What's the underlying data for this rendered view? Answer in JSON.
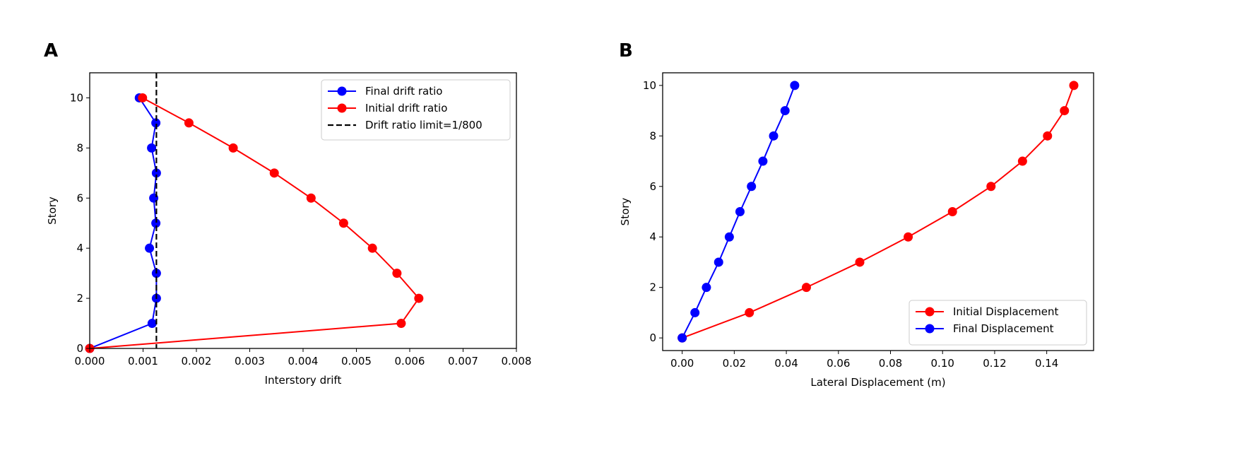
{
  "panel_labels": [
    "A",
    "B"
  ],
  "chart_data": [
    {
      "type": "line",
      "panel": "A",
      "xlabel": "Interstory drift",
      "ylabel": "Story",
      "xlim": [
        0,
        0.008
      ],
      "ylim": [
        0,
        11
      ],
      "xticks": [
        0,
        0.001,
        0.002,
        0.003,
        0.004,
        0.005,
        0.006,
        0.007,
        0.008
      ],
      "xtick_labels": [
        "0.000",
        "0.001",
        "0.002",
        "0.003",
        "0.004",
        "0.005",
        "0.006",
        "0.007",
        "0.008"
      ],
      "yticks": [
        0,
        2,
        4,
        6,
        8,
        10
      ],
      "ytick_labels": [
        "0",
        "2",
        "4",
        "6",
        "8",
        "10"
      ],
      "grid": false,
      "legend_position": "top-right",
      "series": [
        {
          "name": "Final drift ratio",
          "color": "#0000ff",
          "marker": "circle",
          "x": [
            0,
            0.00117,
            0.00125,
            0.00125,
            0.00112,
            0.00124,
            0.0012,
            0.00125,
            0.00116,
            0.00124,
            0.00093
          ],
          "y": [
            0,
            1,
            2,
            3,
            4,
            5,
            6,
            7,
            8,
            9,
            10
          ]
        },
        {
          "name": "Initial drift ratio",
          "color": "#ff0000",
          "marker": "circle",
          "x": [
            0,
            0.00584,
            0.00617,
            0.00576,
            0.0053,
            0.00476,
            0.00415,
            0.00346,
            0.00269,
            0.00186,
            0.00099
          ],
          "y": [
            0,
            1,
            2,
            3,
            4,
            5,
            6,
            7,
            8,
            9,
            10
          ]
        },
        {
          "name": "Drift ratio limit=1/800",
          "color": "#000000",
          "style": "dashed",
          "vline": 0.00125
        }
      ]
    },
    {
      "type": "line",
      "panel": "B",
      "xlabel": "Lateral Displacement (m)",
      "ylabel": "Story",
      "xlim": [
        -0.0075,
        0.158
      ],
      "ylim": [
        -0.5,
        10.5
      ],
      "xticks": [
        0,
        0.02,
        0.04,
        0.06,
        0.08,
        0.1,
        0.12,
        0.14
      ],
      "xtick_labels": [
        "0.00",
        "0.02",
        "0.04",
        "0.06",
        "0.08",
        "0.10",
        "0.12",
        "0.14"
      ],
      "yticks": [
        0,
        2,
        4,
        6,
        8,
        10
      ],
      "ytick_labels": [
        "0",
        "2",
        "4",
        "6",
        "8",
        "10"
      ],
      "grid": false,
      "legend_position": "bottom-right",
      "series": [
        {
          "name": "Initial Displacement",
          "color": "#ff0000",
          "marker": "circle",
          "x": [
            0,
            0.0258,
            0.0477,
            0.0682,
            0.0868,
            0.1038,
            0.1186,
            0.1307,
            0.1403,
            0.1468,
            0.1504
          ],
          "y": [
            0,
            1,
            2,
            3,
            4,
            5,
            6,
            7,
            8,
            9,
            10
          ]
        },
        {
          "name": "Final Displacement",
          "color": "#0000ff",
          "marker": "circle",
          "x": [
            0,
            0.0049,
            0.0093,
            0.014,
            0.0181,
            0.0222,
            0.0266,
            0.031,
            0.0351,
            0.0395,
            0.0432
          ],
          "y": [
            0,
            1,
            2,
            3,
            4,
            5,
            6,
            7,
            8,
            9,
            10
          ]
        }
      ]
    }
  ]
}
